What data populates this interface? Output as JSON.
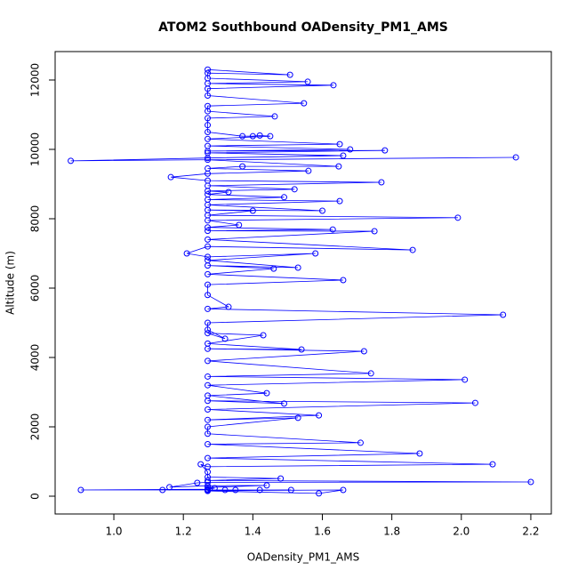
{
  "chart_data": {
    "type": "line",
    "marker": "circle",
    "color": "#0000ff",
    "title": "ATOM2 Southbound OADensity_PM1_AMS",
    "x_label": "OADensity_PM1_AMS",
    "y_label": "Altitude (m)",
    "xlim": [
      0.831,
      2.259
    ],
    "ylim": [
      -513,
      12820
    ],
    "xticks": [
      {
        "value": 1.0,
        "label": "1.0"
      },
      1.2,
      1.4,
      1.6,
      1.8,
      {
        "value": 2.0,
        "label": "2.0"
      },
      2.2
    ],
    "yticks": [
      0,
      2000,
      4000,
      6000,
      8000,
      10000,
      12000
    ],
    "x": [
      1.27,
      1.507,
      1.27,
      1.27,
      1.558,
      1.27,
      1.632,
      1.27,
      1.27,
      1.547,
      1.27,
      1.27,
      1.463,
      1.27,
      1.27,
      1.27,
      1.37,
      1.4,
      1.42,
      1.45,
      1.27,
      1.65,
      1.27,
      1.68,
      1.27,
      1.78,
      1.27,
      1.66,
      1.27,
      0.876,
      2.157,
      1.27,
      1.647,
      1.37,
      1.27,
      1.56,
      1.27,
      1.164,
      1.27,
      1.77,
      1.27,
      1.52,
      1.27,
      1.33,
      1.27,
      1.49,
      1.27,
      1.65,
      1.27,
      1.6,
      1.27,
      1.4,
      1.27,
      1.99,
      1.27,
      1.36,
      1.27,
      1.63,
      1.27,
      1.75,
      1.27,
      1.86,
      1.27,
      1.21,
      1.27,
      1.58,
      1.27,
      1.53,
      1.27,
      1.46,
      1.27,
      1.66,
      1.27,
      1.27,
      1.33,
      1.27,
      2.12,
      1.27,
      1.27,
      1.32,
      1.27,
      1.43,
      1.27,
      1.54,
      1.27,
      1.72,
      1.27,
      1.74,
      1.27,
      2.01,
      1.27,
      1.44,
      1.27,
      1.49,
      1.27,
      2.04,
      1.27,
      1.59,
      1.27,
      1.53,
      1.27,
      1.27,
      1.71,
      1.27,
      1.88,
      1.27,
      2.09,
      1.27,
      1.25,
      1.27,
      1.27,
      1.48,
      1.27,
      2.2,
      1.27,
      1.24,
      1.16,
      1.27,
      1.44,
      1.27,
      1.29,
      1.27,
      0.905,
      1.14,
      1.27,
      1.32,
      1.35,
      1.42,
      1.51,
      1.27,
      1.59,
      1.66,
      1.27
    ],
    "values": [
      12300,
      12150,
      12200,
      12050,
      11950,
      11900,
      11850,
      11750,
      11550,
      11330,
      11250,
      11100,
      10950,
      10900,
      10700,
      10500,
      10380,
      10380,
      10400,
      10380,
      10300,
      10150,
      10100,
      10000,
      9950,
      9970,
      9900,
      9820,
      9750,
      9670,
      9770,
      9700,
      9510,
      9510,
      9450,
      9380,
      9300,
      9200,
      9100,
      9050,
      8950,
      8850,
      8800,
      8770,
      8700,
      8620,
      8550,
      8510,
      8400,
      8230,
      8250,
      8230,
      8100,
      8030,
      7950,
      7820,
      7750,
      7690,
      7650,
      7640,
      7400,
      7100,
      7200,
      7000,
      6900,
      7000,
      6800,
      6590,
      6650,
      6560,
      6400,
      6230,
      6100,
      5800,
      5460,
      5400,
      5230,
      5000,
      4800,
      4540,
      4700,
      4640,
      4400,
      4230,
      4250,
      4180,
      3900,
      3540,
      3450,
      3360,
      3200,
      2970,
      2900,
      2670,
      2750,
      2690,
      2500,
      2330,
      2200,
      2260,
      2000,
      1800,
      1540,
      1500,
      1230,
      1100,
      920,
      850,
      920,
      700,
      550,
      510,
      450,
      410,
      400,
      385,
      260,
      300,
      310,
      250,
      230,
      200,
      180,
      180,
      180,
      180,
      180,
      180,
      180,
      150,
      80,
      180,
      160
    ]
  }
}
